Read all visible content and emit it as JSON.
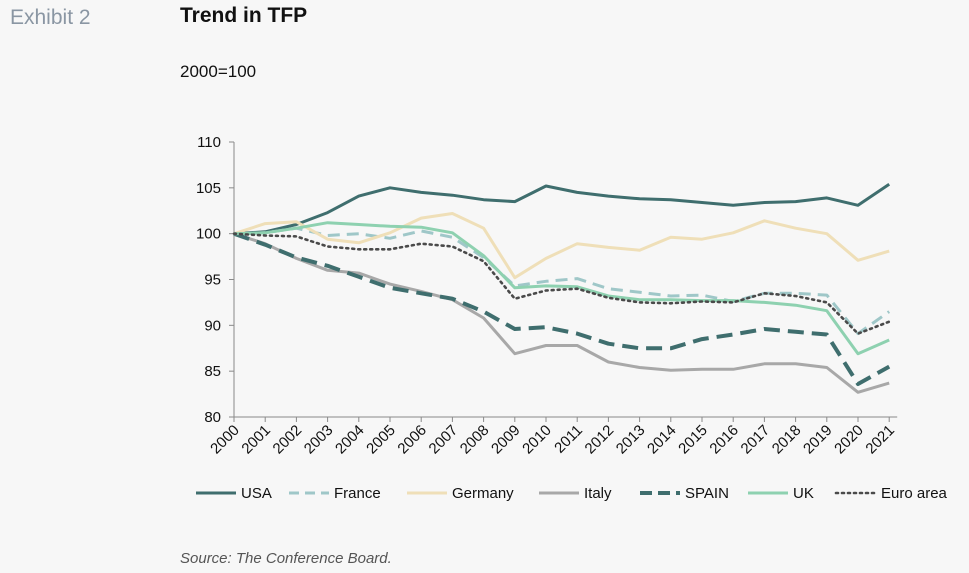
{
  "header": {
    "exhibit": "Exhibit 2",
    "title": "Trend in TFP",
    "subtitle": "2000=100"
  },
  "footer": {
    "source": "Source: The Conference Board."
  },
  "chart_data": {
    "type": "line",
    "title": "Trend in TFP",
    "subtitle": "2000=100",
    "xlabel": "",
    "ylabel": "",
    "x": [
      "2000",
      "2001",
      "2002",
      "2003",
      "2004",
      "2005",
      "2006",
      "2007",
      "2008",
      "2009",
      "2010",
      "2011",
      "2012",
      "2013",
      "2014",
      "2015",
      "2016",
      "2017",
      "2018",
      "2019",
      "2020",
      "2021"
    ],
    "ylim": [
      80,
      110
    ],
    "yticks": [
      80,
      85,
      90,
      95,
      100,
      105,
      110
    ],
    "grid": false,
    "legend": "bottom",
    "series": [
      {
        "name": "USA",
        "color": "#3f6e6e",
        "dash": "solid",
        "values": [
          100,
          100.2,
          101.0,
          102.3,
          104.1,
          105.0,
          104.5,
          104.2,
          103.7,
          103.5,
          105.2,
          104.5,
          104.1,
          103.8,
          103.7,
          103.4,
          103.1,
          103.4,
          103.5,
          103.9,
          103.1,
          105.4
        ]
      },
      {
        "name": "France",
        "color": "#9fc7c8",
        "dash": "dashed",
        "values": [
          100,
          100.1,
          100.6,
          99.8,
          100.0,
          99.5,
          100.3,
          99.6,
          97.4,
          94.3,
          94.8,
          95.1,
          94.0,
          93.6,
          93.2,
          93.3,
          92.6,
          93.5,
          93.5,
          93.3,
          89.1,
          91.5
        ]
      },
      {
        "name": "Germany",
        "color": "#efdfb8",
        "dash": "solid",
        "values": [
          100,
          101.1,
          101.3,
          99.4,
          99.0,
          100.1,
          101.7,
          102.2,
          100.6,
          95.2,
          97.3,
          98.9,
          98.5,
          98.2,
          99.6,
          99.4,
          100.1,
          101.4,
          100.6,
          100.0,
          97.1,
          98.1
        ]
      },
      {
        "name": "Italy",
        "color": "#a8a8a8",
        "dash": "solid",
        "values": [
          100,
          98.9,
          97.3,
          96.0,
          95.7,
          94.5,
          93.7,
          92.8,
          90.8,
          86.9,
          87.8,
          87.8,
          86.0,
          85.4,
          85.1,
          85.2,
          85.2,
          85.8,
          85.8,
          85.4,
          82.7,
          83.7
        ]
      },
      {
        "name": "SPAIN",
        "color": "#3f6e6e",
        "dash": "longdash",
        "values": [
          100,
          98.8,
          97.4,
          96.5,
          95.3,
          94.1,
          93.5,
          92.9,
          91.5,
          89.6,
          89.8,
          89.1,
          88.0,
          87.5,
          87.5,
          88.5,
          89.0,
          89.6,
          89.3,
          89.0,
          83.6,
          85.5
        ]
      },
      {
        "name": "UK",
        "color": "#8ed1b0",
        "dash": "solid",
        "values": [
          100,
          100.1,
          100.6,
          101.2,
          101.0,
          100.8,
          100.7,
          100.1,
          97.6,
          94.1,
          94.3,
          94.2,
          93.2,
          92.8,
          92.8,
          92.7,
          92.7,
          92.5,
          92.2,
          91.6,
          86.9,
          88.4
        ]
      },
      {
        "name": "Euro area",
        "color": "#4a4a4a",
        "dash": "dotted",
        "values": [
          100,
          99.8,
          99.7,
          98.6,
          98.3,
          98.3,
          98.9,
          98.6,
          97.0,
          92.9,
          93.8,
          94.0,
          93.0,
          92.5,
          92.4,
          92.6,
          92.5,
          93.5,
          93.2,
          92.5,
          89.1,
          90.4
        ]
      }
    ]
  }
}
